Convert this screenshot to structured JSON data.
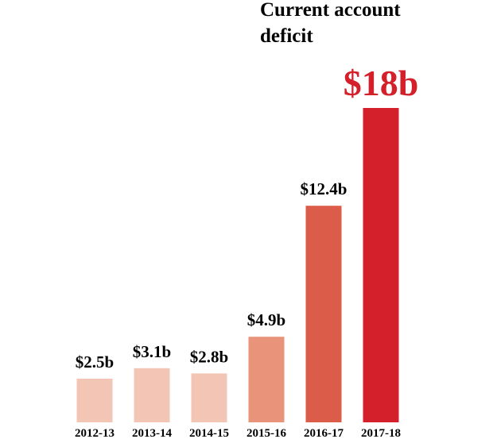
{
  "chart_data": {
    "type": "bar",
    "title_lines": [
      "Current account",
      "deficit"
    ],
    "xlabel": "",
    "ylabel": "",
    "categories": [
      "2012-13",
      "2013-14",
      "2014-15",
      "2015-16",
      "2016-17",
      "2017-18"
    ],
    "values": [
      2.5,
      3.1,
      2.8,
      4.9,
      12.4,
      18
    ],
    "data_labels": [
      "$2.5b",
      "$3.1b",
      "$2.8b",
      "$4.9b",
      "$12.4b",
      "$18b"
    ],
    "bar_colors": [
      "#f2c5b4",
      "#f2c5b4",
      "#f2c5b4",
      "#e8937a",
      "#dc5c4a",
      "#d4202a"
    ],
    "highlight_label_color": "#d4202a",
    "label_color": "#000000",
    "ylim": [
      0,
      18
    ],
    "grid": false,
    "legend": "none"
  }
}
